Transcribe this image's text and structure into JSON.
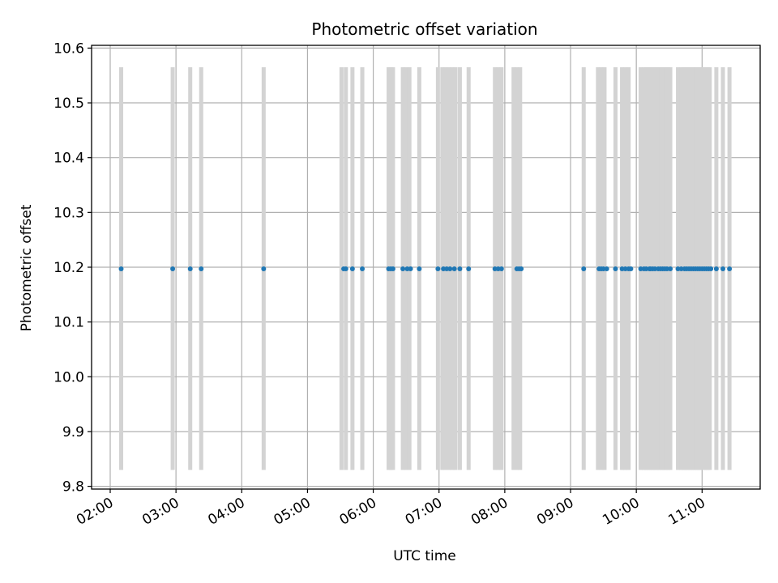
{
  "chart_data": {
    "type": "scatter",
    "title": "Photometric offset variation",
    "xlabel": "UTC time",
    "ylabel": "Photometric offset",
    "xlim": [
      "01:43",
      "11:53"
    ],
    "ylim": [
      9.795,
      10.605
    ],
    "x_ticks": [
      "02:00",
      "03:00",
      "04:00",
      "05:00",
      "06:00",
      "07:00",
      "08:00",
      "09:00",
      "10:00",
      "11:00"
    ],
    "y_ticks": [
      "9.8",
      "9.9",
      "10.0",
      "10.1",
      "10.2",
      "10.3",
      "10.4",
      "10.5",
      "10.6"
    ],
    "grid": true,
    "colors": {
      "points": "#1f77b4",
      "bands": "#d3d3d3",
      "grid": "#b0b0b0"
    },
    "series": [
      {
        "y": 10.197,
        "x": [
          "02:10",
          "02:57",
          "03:13",
          "03:23",
          "04:20",
          "05:33",
          "05:35",
          "05:41",
          "05:50",
          "06:14",
          "06:16",
          "06:18",
          "06:27",
          "06:31",
          "06:34",
          "06:42",
          "06:59",
          "07:04",
          "07:07",
          "07:10",
          "07:14",
          "07:19",
          "07:27",
          "07:51",
          "07:54",
          "07:57",
          "08:11",
          "08:13",
          "08:15",
          "09:12",
          "09:26",
          "09:28",
          "09:30",
          "09:33",
          "09:41",
          "09:47",
          "09:50",
          "09:53",
          "09:55",
          "10:04",
          "10:07",
          "10:09",
          "10:12",
          "10:13",
          "10:15",
          "10:17",
          "10:20",
          "10:22",
          "10:24",
          "10:26",
          "10:28",
          "10:31",
          "10:38",
          "10:41",
          "10:44",
          "10:46",
          "10:48",
          "10:50",
          "10:52",
          "10:54",
          "10:56",
          "10:58",
          "11:00",
          "11:02",
          "11:04",
          "11:06",
          "11:08",
          "11:13",
          "11:19",
          "11:25"
        ]
      }
    ],
    "bands": {
      "y_range": [
        9.83,
        10.565
      ],
      "x": [
        "02:10",
        "02:57",
        "03:13",
        "03:23",
        "04:20",
        "05:31",
        "05:35",
        "05:41",
        "05:50",
        "06:14",
        "06:16",
        "06:18",
        "06:27",
        "06:30",
        "06:33",
        "06:42",
        "06:59",
        "07:03",
        "07:06",
        "07:09",
        "07:12",
        "07:15",
        "07:19",
        "07:27",
        "07:51",
        "07:54",
        "07:57",
        "08:08",
        "08:11",
        "08:14",
        "09:12",
        "09:25",
        "09:28",
        "09:31",
        "09:41",
        "09:47",
        "09:50",
        "09:53",
        "10:04",
        "10:07",
        "10:09",
        "10:11",
        "10:13",
        "10:15",
        "10:17",
        "10:19",
        "10:21",
        "10:23",
        "10:25",
        "10:27",
        "10:29",
        "10:31",
        "10:38",
        "10:41",
        "10:43",
        "10:45",
        "10:47",
        "10:49",
        "10:51",
        "10:53",
        "10:55",
        "10:57",
        "10:59",
        "11:01",
        "11:03",
        "11:05",
        "11:07",
        "11:13",
        "11:19",
        "11:25"
      ]
    }
  }
}
